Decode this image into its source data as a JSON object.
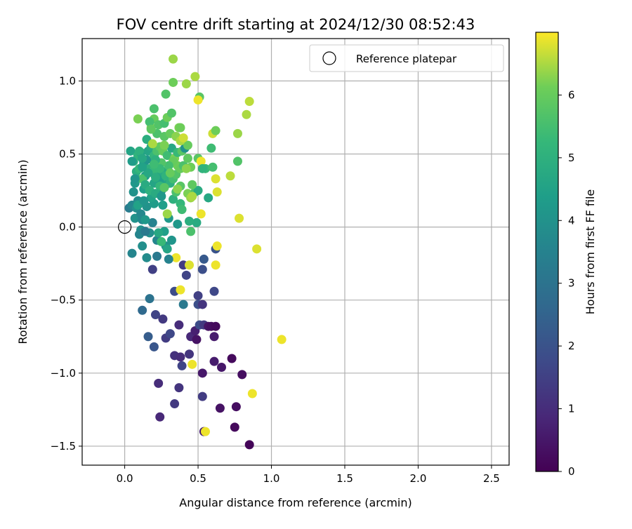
{
  "chart_data": {
    "type": "scatter",
    "title": "FOV centre drift starting at 2024/12/30 08:52:43",
    "xlabel": "Angular distance from reference (arcmin)",
    "ylabel": "Rotation from reference (arcmin)",
    "xlim": [
      -0.29,
      2.62
    ],
    "ylim": [
      -1.63,
      1.29
    ],
    "xticks": [
      "0.0",
      "0.5",
      "1.0",
      "1.5",
      "2.0",
      "2.5"
    ],
    "xtick_values": [
      0,
      0.5,
      1.0,
      1.5,
      2.0,
      2.5
    ],
    "yticks": [
      "−1.5",
      "−1.0",
      "−0.5",
      "0.0",
      "0.5",
      "1.0"
    ],
    "ytick_values": [
      -1.5,
      -1.0,
      -0.5,
      0,
      0.5,
      1.0
    ],
    "grid": true,
    "legend": {
      "placement": "top-right",
      "entries": [
        "Reference platepar"
      ]
    },
    "reference_point": {
      "x": 0.0,
      "y": 0.0,
      "marker": "open-circle"
    },
    "colorbar": {
      "label": "Hours from first FF file",
      "colormap": "viridis",
      "range": [
        0,
        7
      ],
      "ticks": [
        "0",
        "1",
        "2",
        "3",
        "4",
        "5",
        "6"
      ],
      "tick_values": [
        0,
        1,
        2,
        3,
        4,
        5,
        6
      ]
    },
    "points": [
      [
        0.85,
        -1.49,
        0.1
      ],
      [
        0.75,
        -1.37,
        0.2
      ],
      [
        0.54,
        -1.4,
        0.6
      ],
      [
        0.65,
        -1.24,
        0.4
      ],
      [
        0.76,
        -1.23,
        0.3
      ],
      [
        0.34,
        -1.21,
        1.3
      ],
      [
        0.24,
        -1.3,
        0.9
      ],
      [
        0.23,
        -1.07,
        1.0
      ],
      [
        0.37,
        -1.1,
        1.2
      ],
      [
        0.53,
        -1.16,
        1.4
      ],
      [
        0.8,
        -1.01,
        0.3
      ],
      [
        0.66,
        -0.96,
        0.5
      ],
      [
        0.73,
        -0.9,
        0.2
      ],
      [
        0.61,
        -0.92,
        0.6
      ],
      [
        0.53,
        -1.0,
        0.5
      ],
      [
        0.34,
        -0.88,
        1.1
      ],
      [
        0.38,
        -0.89,
        1.0
      ],
      [
        0.39,
        -0.95,
        1.6
      ],
      [
        0.44,
        -0.87,
        1.2
      ],
      [
        0.28,
        -0.76,
        1.4
      ],
      [
        0.31,
        -0.73,
        1.7
      ],
      [
        0.2,
        -0.82,
        2.1
      ],
      [
        0.16,
        -0.75,
        2.3
      ],
      [
        0.26,
        -0.63,
        1.3
      ],
      [
        0.21,
        -0.6,
        1.6
      ],
      [
        0.12,
        -0.57,
        2.7
      ],
      [
        0.17,
        -0.49,
        3.0
      ],
      [
        0.37,
        -0.67,
        1.0
      ],
      [
        0.45,
        -0.75,
        0.9
      ],
      [
        0.48,
        -0.71,
        0.7
      ],
      [
        0.49,
        -0.77,
        0.4
      ],
      [
        0.51,
        -0.67,
        1.8
      ],
      [
        0.54,
        -0.67,
        1.3
      ],
      [
        0.57,
        -0.68,
        0.4
      ],
      [
        0.59,
        -0.68,
        0.3
      ],
      [
        0.62,
        -0.68,
        0.2
      ],
      [
        0.61,
        -0.75,
        0.6
      ],
      [
        0.5,
        -0.47,
        1.5
      ],
      [
        0.5,
        -0.53,
        1.9
      ],
      [
        0.53,
        -0.53,
        1.2
      ],
      [
        0.4,
        -0.53,
        3.2
      ],
      [
        0.34,
        -0.44,
        1.8
      ],
      [
        0.38,
        -0.43,
        6.9
      ],
      [
        0.42,
        -0.33,
        1.6
      ],
      [
        0.4,
        -0.26,
        1.4
      ],
      [
        0.53,
        -0.29,
        1.9
      ],
      [
        0.61,
        -0.44,
        1.7
      ],
      [
        0.54,
        -0.22,
        2.2
      ],
      [
        0.62,
        -0.15,
        2.0
      ],
      [
        0.19,
        -0.29,
        1.5
      ],
      [
        0.44,
        -0.26,
        6.8
      ],
      [
        0.35,
        -0.21,
        6.9
      ],
      [
        0.46,
        -0.94,
        6.9
      ],
      [
        0.55,
        -1.4,
        6.9
      ],
      [
        0.87,
        -1.14,
        6.9
      ],
      [
        1.07,
        -0.77,
        6.9
      ],
      [
        0.9,
        -0.15,
        6.8
      ],
      [
        0.63,
        -0.13,
        6.9
      ],
      [
        0.62,
        -0.26,
        6.9
      ],
      [
        0.22,
        -0.2,
        3.2
      ],
      [
        0.3,
        -0.22,
        3.5
      ],
      [
        0.32,
        -0.09,
        4.1
      ],
      [
        0.15,
        -0.21,
        3.8
      ],
      [
        0.12,
        -0.13,
        3.9
      ],
      [
        0.05,
        -0.18,
        3.6
      ],
      [
        0.28,
        -0.13,
        4.0
      ],
      [
        0.22,
        -0.09,
        3.6
      ],
      [
        0.45,
        -0.03,
        5.6
      ],
      [
        0.49,
        0.03,
        4.8
      ],
      [
        0.36,
        0.02,
        4.2
      ],
      [
        0.27,
        -0.03,
        4.4
      ],
      [
        0.11,
        -0.02,
        3.9
      ],
      [
        0.07,
        0.06,
        4.0
      ],
      [
        0.12,
        0.05,
        3.7
      ],
      [
        0.19,
        0.03,
        3.5
      ],
      [
        0.3,
        0.06,
        4.2
      ],
      [
        0.03,
        0.13,
        3.3
      ],
      [
        0.05,
        0.15,
        3.6
      ],
      [
        0.08,
        0.13,
        3.9
      ],
      [
        0.12,
        0.17,
        3.4
      ],
      [
        0.15,
        0.14,
        4.0
      ],
      [
        0.2,
        0.16,
        4.3
      ],
      [
        0.18,
        0.2,
        4.5
      ],
      [
        0.25,
        0.25,
        4.1
      ],
      [
        0.28,
        0.29,
        4.6
      ],
      [
        0.33,
        0.19,
        5.0
      ],
      [
        0.38,
        0.16,
        5.2
      ],
      [
        0.39,
        0.12,
        5.4
      ],
      [
        0.29,
        0.09,
        6.4
      ],
      [
        0.38,
        0.28,
        5.8
      ],
      [
        0.43,
        0.23,
        6.2
      ],
      [
        0.45,
        0.2,
        6.4
      ],
      [
        0.48,
        0.24,
        5.6
      ],
      [
        0.5,
        0.25,
        4.8
      ],
      [
        0.57,
        0.2,
        4.7
      ],
      [
        0.52,
        0.09,
        6.9
      ],
      [
        0.06,
        0.24,
        4.0
      ],
      [
        0.07,
        0.3,
        4.2
      ],
      [
        0.08,
        0.33,
        4.5
      ],
      [
        0.13,
        0.26,
        4.4
      ],
      [
        0.14,
        0.35,
        4.3
      ],
      [
        0.2,
        0.3,
        4.6
      ],
      [
        0.22,
        0.36,
        4.7
      ],
      [
        0.24,
        0.33,
        4.4
      ],
      [
        0.26,
        0.38,
        4.8
      ],
      [
        0.28,
        0.35,
        5.1
      ],
      [
        0.31,
        0.3,
        5.0
      ],
      [
        0.33,
        0.33,
        5.5
      ],
      [
        0.35,
        0.36,
        5.7
      ],
      [
        0.36,
        0.42,
        6.1
      ],
      [
        0.38,
        0.4,
        6.0
      ],
      [
        0.4,
        0.42,
        5.6
      ],
      [
        0.43,
        0.47,
        5.9
      ],
      [
        0.45,
        0.41,
        6.1
      ],
      [
        0.5,
        0.47,
        5.8
      ],
      [
        0.52,
        0.45,
        6.9
      ],
      [
        0.55,
        0.4,
        5.3
      ],
      [
        0.62,
        0.33,
        6.8
      ],
      [
        0.63,
        0.24,
        6.8
      ],
      [
        0.72,
        0.35,
        6.6
      ],
      [
        0.77,
        0.45,
        5.7
      ],
      [
        0.04,
        0.52,
        4.6
      ],
      [
        0.06,
        0.45,
        4.9
      ],
      [
        0.09,
        0.49,
        5.1
      ],
      [
        0.11,
        0.51,
        4.4
      ],
      [
        0.13,
        0.44,
        4.3
      ],
      [
        0.15,
        0.46,
        4.1
      ],
      [
        0.16,
        0.52,
        4.6
      ],
      [
        0.18,
        0.55,
        4.8
      ],
      [
        0.2,
        0.49,
        5.2
      ],
      [
        0.22,
        0.52,
        5.6
      ],
      [
        0.24,
        0.55,
        5.9
      ],
      [
        0.26,
        0.52,
        6.0
      ],
      [
        0.29,
        0.49,
        5.4
      ],
      [
        0.32,
        0.54,
        4.7
      ],
      [
        0.34,
        0.47,
        6.2
      ],
      [
        0.36,
        0.51,
        5.3
      ],
      [
        0.39,
        0.52,
        5.8
      ],
      [
        0.41,
        0.54,
        4.0
      ],
      [
        0.43,
        0.56,
        6.0
      ],
      [
        0.15,
        0.6,
        4.9
      ],
      [
        0.19,
        0.57,
        6.5
      ],
      [
        0.22,
        0.64,
        5.6
      ],
      [
        0.27,
        0.62,
        5.8
      ],
      [
        0.31,
        0.64,
        6.0
      ],
      [
        0.35,
        0.62,
        6.3
      ],
      [
        0.37,
        0.68,
        6.2
      ],
      [
        0.38,
        0.59,
        6.5
      ],
      [
        0.4,
        0.61,
        6.7
      ],
      [
        0.18,
        0.68,
        6.3
      ],
      [
        0.2,
        0.74,
        6.0
      ],
      [
        0.17,
        0.72,
        5.5
      ],
      [
        0.23,
        0.7,
        5.7
      ],
      [
        0.27,
        0.71,
        5.5
      ],
      [
        0.29,
        0.75,
        6.1
      ],
      [
        0.09,
        0.74,
        6.2
      ],
      [
        0.2,
        0.81,
        5.6
      ],
      [
        0.32,
        0.78,
        5.7
      ],
      [
        0.38,
        0.68,
        6.1
      ],
      [
        0.59,
        0.54,
        5.4
      ],
      [
        0.6,
        0.64,
        6.7
      ],
      [
        0.62,
        0.66,
        6.1
      ],
      [
        0.77,
        0.64,
        6.4
      ],
      [
        0.83,
        0.77,
        6.5
      ],
      [
        0.85,
        0.86,
        6.6
      ],
      [
        0.78,
        0.06,
        6.8
      ],
      [
        0.28,
        0.91,
        5.7
      ],
      [
        0.33,
        0.99,
        6.1
      ],
      [
        0.42,
        0.98,
        6.4
      ],
      [
        0.51,
        0.89,
        5.8
      ],
      [
        0.5,
        0.87,
        6.9
      ],
      [
        0.48,
        1.03,
        6.5
      ],
      [
        0.33,
        1.15,
        6.4
      ],
      [
        0.1,
        0.52,
        5.0
      ],
      [
        0.12,
        0.47,
        4.7
      ],
      [
        0.17,
        0.4,
        5.0
      ],
      [
        0.19,
        0.38,
        5.3
      ],
      [
        0.24,
        0.28,
        5.2
      ],
      [
        0.08,
        0.38,
        4.9
      ],
      [
        0.1,
        0.4,
        5.2
      ],
      [
        0.12,
        0.33,
        5.6
      ],
      [
        0.14,
        0.29,
        4.8
      ],
      [
        0.17,
        0.25,
        5.0
      ],
      [
        0.21,
        0.23,
        4.8
      ],
      [
        0.25,
        0.21,
        4.2
      ],
      [
        0.26,
        0.15,
        4.4
      ],
      [
        0.09,
        0.18,
        3.8
      ],
      [
        0.11,
        0.09,
        3.7
      ],
      [
        0.14,
        0.05,
        4.2
      ],
      [
        0.17,
        -0.04,
        3.9
      ],
      [
        0.1,
        -0.05,
        3.6
      ],
      [
        0.14,
        -0.03,
        3.2
      ],
      [
        0.23,
        -0.04,
        4.7
      ],
      [
        0.25,
        -0.1,
        5.3
      ],
      [
        0.29,
        -0.15,
        4.6
      ],
      [
        0.09,
        0.15,
        4.5
      ],
      [
        0.13,
        0.18,
        4.1
      ],
      [
        0.44,
        0.04,
        4.9
      ],
      [
        0.53,
        0.4,
        5.1
      ],
      [
        0.6,
        0.41,
        5.5
      ],
      [
        0.42,
        0.4,
        6.3
      ],
      [
        0.46,
        0.29,
        5.9
      ],
      [
        0.27,
        0.56,
        6.2
      ],
      [
        0.33,
        0.45,
        6.0
      ],
      [
        0.3,
        0.42,
        5.5
      ],
      [
        0.18,
        0.67,
        5.9
      ],
      [
        0.25,
        0.44,
        5.7
      ],
      [
        0.31,
        0.37,
        6.0
      ],
      [
        0.24,
        0.4,
        5.3
      ],
      [
        0.21,
        0.46,
        5.0
      ],
      [
        0.27,
        0.27,
        5.8
      ],
      [
        0.21,
        0.34,
        4.9
      ],
      [
        0.35,
        0.24,
        5.6
      ],
      [
        0.16,
        0.37,
        4.7
      ],
      [
        0.12,
        0.41,
        4.5
      ],
      [
        0.05,
        0.45,
        4.3
      ],
      [
        0.07,
        0.33,
        4.1
      ],
      [
        0.2,
        0.43,
        5.4
      ],
      [
        0.36,
        0.26,
        6.3
      ],
      [
        0.46,
        0.21,
        6.5
      ]
    ]
  }
}
